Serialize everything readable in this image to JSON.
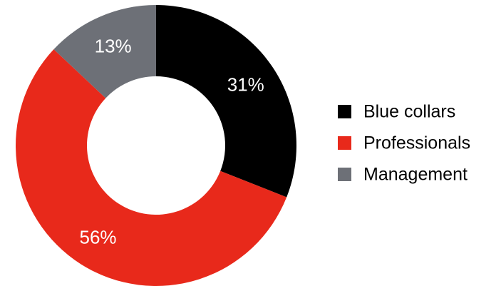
{
  "chart_data": {
    "type": "pie",
    "variant": "donut",
    "title": "",
    "categories": [
      "Blue collars",
      "Professionals",
      "Management"
    ],
    "values": [
      31,
      56,
      13
    ],
    "unit": "%",
    "data_labels": [
      "31%",
      "56%",
      "13%"
    ],
    "colors": [
      "#000000",
      "#e8291b",
      "#6d7077"
    ],
    "start_angle": "12 o'clock",
    "direction": "clockwise",
    "legend": {
      "position": "right",
      "entries": [
        "Blue collars",
        "Professionals",
        "Management"
      ]
    }
  }
}
